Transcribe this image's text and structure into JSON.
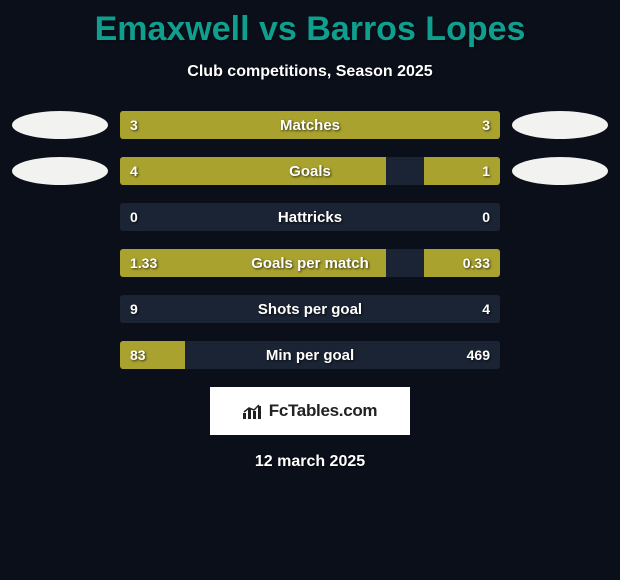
{
  "title": "Emaxwell vs Barros Lopes",
  "subtitle": "Club competitions, Season 2025",
  "date": "12 march 2025",
  "branding_text": "FcTables.com",
  "colors": {
    "background": "#0b0f1a",
    "title_color": "#0f9f8f",
    "text_color": "#ffffff",
    "bar_track": "#1b2434",
    "bar_fill": "#a9a22f",
    "avatar_bg": "#f2f2f0",
    "branding_bg": "#ffffff",
    "branding_text": "#222222"
  },
  "stats": [
    {
      "label": "Matches",
      "left_val": "3",
      "right_val": "3",
      "left_pct": 50,
      "right_pct": 50,
      "show_avatars": true
    },
    {
      "label": "Goals",
      "left_val": "4",
      "right_val": "1",
      "left_pct": 70,
      "right_pct": 20,
      "show_avatars": true
    },
    {
      "label": "Hattricks",
      "left_val": "0",
      "right_val": "0",
      "left_pct": 0,
      "right_pct": 0,
      "show_avatars": false
    },
    {
      "label": "Goals per match",
      "left_val": "1.33",
      "right_val": "0.33",
      "left_pct": 70,
      "right_pct": 20,
      "show_avatars": false
    },
    {
      "label": "Shots per goal",
      "left_val": "9",
      "right_val": "4",
      "left_pct": 0,
      "right_pct": 0,
      "show_avatars": false
    },
    {
      "label": "Min per goal",
      "left_val": "83",
      "right_val": "469",
      "left_pct": 17,
      "right_pct": 0,
      "show_avatars": false
    }
  ]
}
